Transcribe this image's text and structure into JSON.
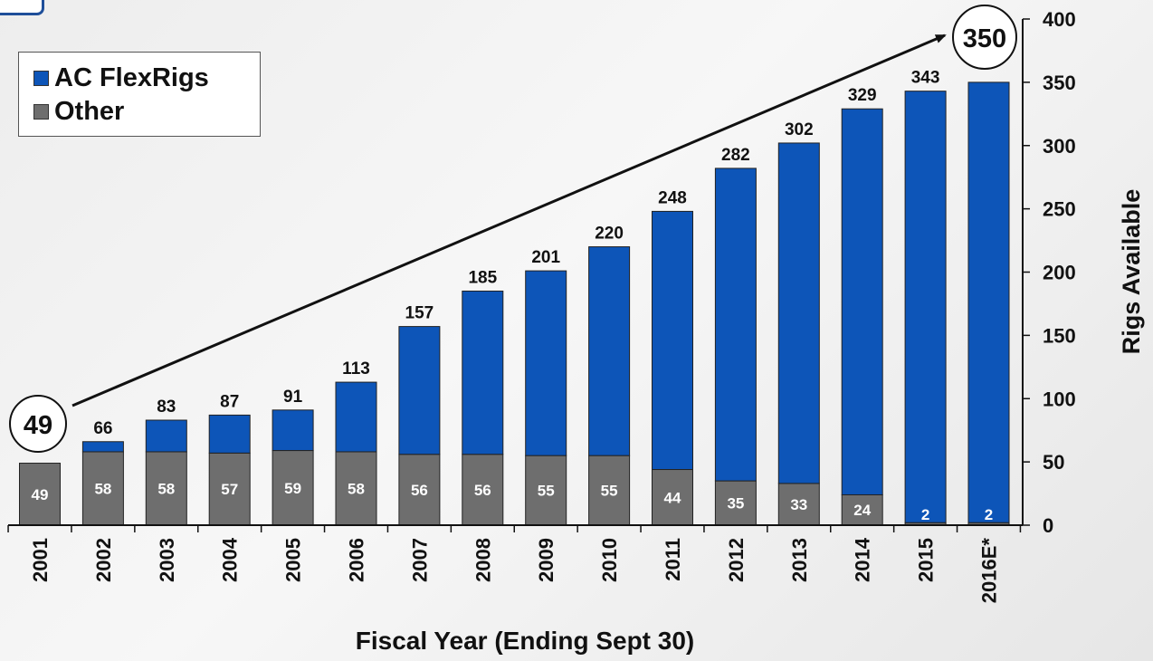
{
  "colors": {
    "ac_flexrigs": "#0d55b8",
    "other": "#6e6e6e",
    "axis": "#111111",
    "inside_label": "#ffffff"
  },
  "legend": {
    "items": [
      {
        "label": "AC FlexRigs",
        "color": "#0d55b8"
      },
      {
        "label": "Other",
        "color": "#6e6e6e"
      }
    ]
  },
  "chart_data": {
    "type": "bar",
    "stacked": true,
    "title": "",
    "xlabel": "Fiscal Year (Ending Sept 30)",
    "ylabel": "Rigs Available",
    "y_axis_side": "right",
    "ylim": [
      0,
      400
    ],
    "yticks": [
      "0",
      "50",
      "100",
      "150",
      "200",
      "250",
      "300",
      "350",
      "400"
    ],
    "categories": [
      "2001",
      "2002",
      "2003",
      "2004",
      "2005",
      "2006",
      "2007",
      "2008",
      "2009",
      "2010",
      "2011",
      "2012",
      "2013",
      "2014",
      "2015",
      "2016E*"
    ],
    "series": [
      {
        "name": "Other",
        "values": [
          49,
          58,
          58,
          57,
          59,
          58,
          56,
          56,
          55,
          55,
          44,
          35,
          33,
          24,
          2,
          2
        ]
      },
      {
        "name": "AC FlexRigs",
        "values": [
          0,
          8,
          25,
          30,
          32,
          55,
          101,
          129,
          146,
          165,
          204,
          247,
          269,
          305,
          341,
          348
        ]
      }
    ],
    "totals": [
      "",
      "66",
      "83",
      "87",
      "91",
      "113",
      "157",
      "185",
      "201",
      "220",
      "248",
      "282",
      "302",
      "329",
      "343",
      ""
    ],
    "other_labels": [
      "49",
      "58",
      "58",
      "57",
      "59",
      "58",
      "56",
      "56",
      "55",
      "55",
      "44",
      "35",
      "33",
      "24",
      "2",
      "2"
    ],
    "annotations": {
      "start": "49",
      "end": "350"
    },
    "legend_position": "top-left",
    "grid": false
  }
}
